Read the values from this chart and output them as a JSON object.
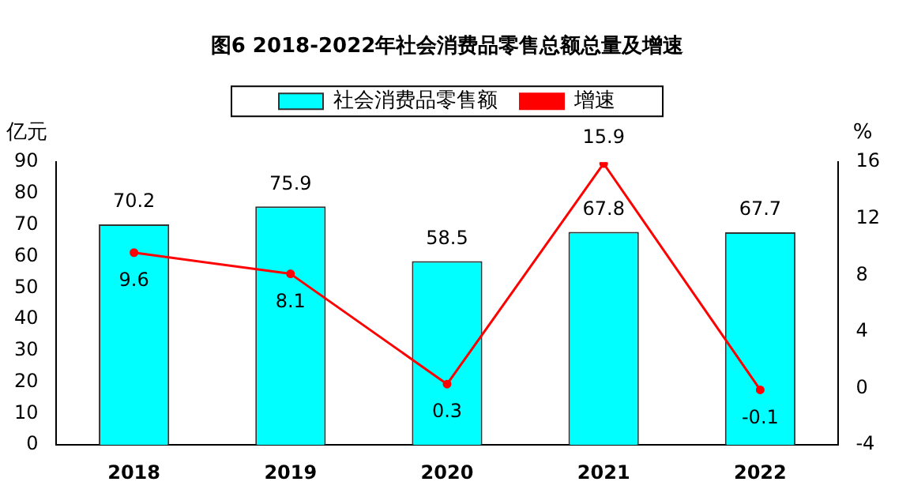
{
  "chart_data": {
    "type": "bar",
    "title": "图6 2018-2022年社会消费品零售总额总量及增速",
    "ylabel": "亿元",
    "y2label": "%",
    "categories": [
      "2018",
      "2019",
      "2020",
      "2021",
      "2022"
    ],
    "series": [
      {
        "name": "社会消费品零售额",
        "color": "#00ffff",
        "values": [
          70.2,
          75.9,
          58.5,
          67.8,
          67.7
        ]
      },
      {
        "name": "增速",
        "type": "line",
        "axis": "y2",
        "color": "#ff0000",
        "values": [
          9.6,
          8.1,
          0.3,
          15.9,
          -0.1
        ]
      }
    ],
    "ylim": [
      0,
      90
    ],
    "yticks": [
      0,
      10,
      20,
      30,
      40,
      50,
      60,
      70,
      80,
      90
    ],
    "y2lim": [
      -4,
      16
    ],
    "y2ticks": [
      -4,
      0,
      4,
      8,
      12,
      16
    ],
    "data_labels": true,
    "legend": "top",
    "grid": false,
    "marker": "circle",
    "line_style": "solid"
  }
}
